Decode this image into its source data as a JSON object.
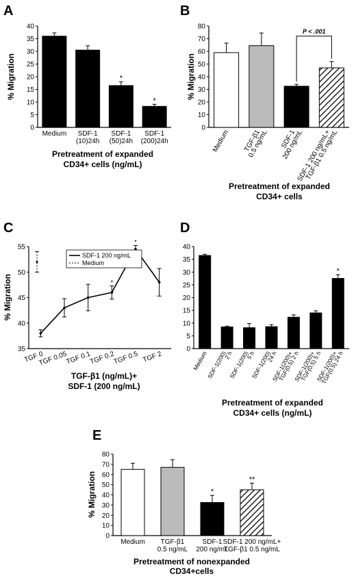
{
  "chart_data": [
    {
      "panel": "A",
      "type": "bar",
      "ylabel": "% Migration",
      "xlabel_lines": [
        "Pretreatment of expanded",
        "CD34+ cells (ng/mL)"
      ],
      "categories": [
        [
          "Medium"
        ],
        [
          "SDF-1",
          "(10)24h"
        ],
        [
          "SDF-1",
          "(50)24h"
        ],
        [
          "SDF-1",
          "(200)24h"
        ]
      ],
      "values": [
        36,
        30.5,
        16.5,
        8.3
      ],
      "errors": [
        1.3,
        1.7,
        1.5,
        0.8
      ],
      "bar_colors": [
        "#000000",
        "#000000",
        "#000000",
        "#000000"
      ],
      "significance": [
        "",
        "",
        "*",
        "*"
      ],
      "ylim": [
        0,
        40
      ],
      "yticks": [
        0,
        5,
        10,
        15,
        20,
        25,
        30,
        35,
        40
      ]
    },
    {
      "panel": "B",
      "type": "bar",
      "ylabel": "% Migration",
      "xlabel_lines": [
        "Pretreatment of expanded",
        "CD34+ cells"
      ],
      "categories": [
        [
          "Medium"
        ],
        [
          "TGF-β1",
          "0.5 ng/mL"
        ],
        [
          "SDF-1",
          "200 ng/mL"
        ],
        [
          "SDF-1 200 ng/mL+",
          "TGF-β1 0.5 ng/mL"
        ]
      ],
      "values": [
        59,
        64.5,
        32.5,
        47
      ],
      "errors": [
        7.5,
        10,
        1.5,
        5
      ],
      "bar_colors": [
        "#ffffff",
        "#bbbbbb",
        "#000000",
        "hatch"
      ],
      "ylim": [
        0,
        80
      ],
      "yticks": [
        0,
        10,
        20,
        30,
        40,
        50,
        60,
        70,
        80
      ],
      "bracket_label": "P < .001"
    },
    {
      "panel": "C",
      "type": "line",
      "ylabel": "% Migration",
      "xlabel_lines": [
        "TGF-β1 (ng/mL)+",
        "SDF-1 (200 ng/mL)"
      ],
      "x": [
        "TGF 0",
        "TGF 0.05",
        "TGF 0.1",
        "TGF 0.2",
        "TGF 0.5",
        "TGF 2"
      ],
      "series": [
        {
          "name": "SDF-1 200 ng/mL",
          "values": [
            38,
            43,
            45,
            46,
            54.5,
            48
          ],
          "errors": [
            0.7,
            1.8,
            2.6,
            1.3,
            0.7,
            2.7
          ],
          "significance": [
            "",
            "",
            "",
            "*",
            "*",
            ""
          ]
        },
        {
          "name": "Medium",
          "value": 52,
          "error": 2
        }
      ],
      "ylim": [
        35,
        55
      ],
      "yticks": [
        35,
        40,
        45,
        50,
        55
      ],
      "legend": "top-left"
    },
    {
      "panel": "D",
      "type": "bar",
      "ylabel": "",
      "xlabel_lines": [
        "Pretreatment of expanded",
        "CD34+ cells (ng/mL)"
      ],
      "categories": [
        [
          "Medium"
        ],
        [
          "SDF-1(200)",
          "2 h"
        ],
        [
          "SDF-1(200)",
          "5 h"
        ],
        [
          "SDF-1(200)",
          "24 h"
        ],
        [
          "SDF-1(200)+",
          "TGF(0.5) 2 h"
        ],
        [
          "SDF-1(200)+",
          "TGF(0.5) 5 h"
        ],
        [
          "SDF-1(200)+",
          "TGF(0.5) 24 h"
        ]
      ],
      "values": [
        36.5,
        8.5,
        8.2,
        8.6,
        12.3,
        14,
        27.5
      ],
      "errors": [
        0.5,
        0.3,
        1.6,
        0.8,
        0.9,
        0.8,
        1.5
      ],
      "bar_colors": [
        "#000000",
        "#000000",
        "#000000",
        "#000000",
        "#000000",
        "#000000",
        "#000000"
      ],
      "significance": [
        "",
        "",
        "",
        "",
        "",
        "",
        "*"
      ],
      "ylim": [
        0,
        40
      ],
      "yticks": [
        0,
        5,
        10,
        15,
        20,
        25,
        30,
        35,
        40
      ]
    },
    {
      "panel": "E",
      "type": "bar",
      "ylabel": "% Migration",
      "xlabel_lines": [
        "Pretreatment of nonexpanded",
        "CD34+cells"
      ],
      "categories": [
        [
          "Medium"
        ],
        [
          "TGF-β1",
          "0.5 ng/mL"
        ],
        [
          "SDF-1",
          "200 ng/mL"
        ],
        [
          "SDF-1 200 ng/mL+",
          "TGF-β1 0.5 ng/mL"
        ]
      ],
      "values": [
        65,
        67,
        32.5,
        45
      ],
      "errors": [
        6,
        7.5,
        7,
        6.5
      ],
      "bar_colors": [
        "#ffffff",
        "#bbbbbb",
        "#000000",
        "hatch"
      ],
      "significance": [
        "",
        "",
        "*",
        "**"
      ],
      "ylim": [
        0,
        80
      ],
      "yticks": [
        0,
        10,
        20,
        30,
        40,
        50,
        60,
        70,
        80
      ]
    }
  ]
}
